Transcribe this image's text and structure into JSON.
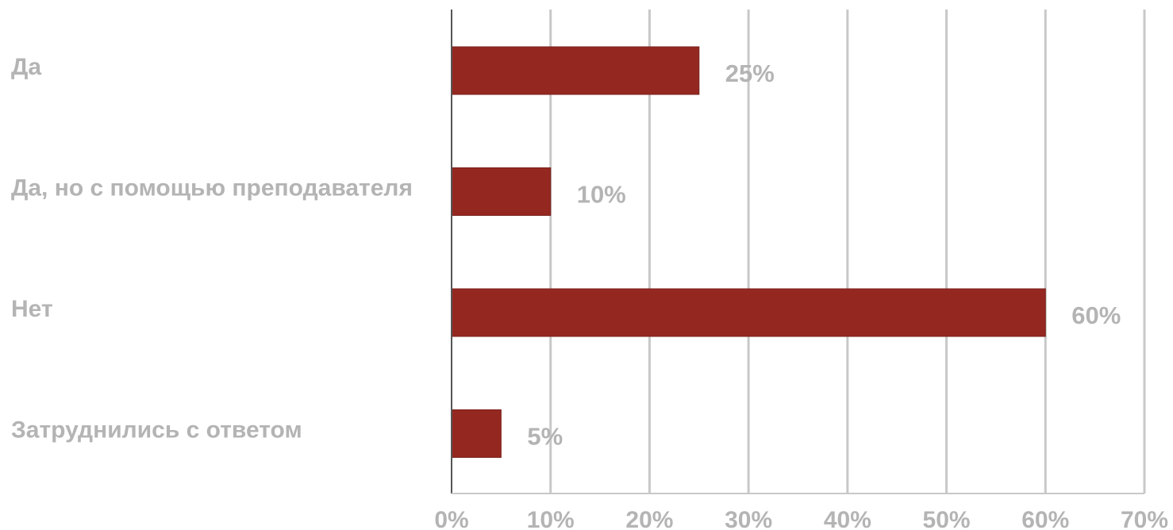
{
  "chart_data": {
    "type": "bar",
    "orientation": "horizontal",
    "categories": [
      "Да",
      "Да, но с помощью преподавателя",
      "Нет",
      "Затруднились с ответом"
    ],
    "values": [
      25,
      10,
      60,
      5
    ],
    "value_labels": [
      "25%",
      "10%",
      "60%",
      "5%"
    ],
    "xlim": [
      0,
      70
    ],
    "x_ticks": [
      0,
      10,
      20,
      30,
      40,
      50,
      60,
      70
    ],
    "x_tick_labels": [
      "0%",
      "10%",
      "20%",
      "30%",
      "40%",
      "50%",
      "60%",
      "70%"
    ],
    "title": "",
    "xlabel": "",
    "ylabel": "",
    "grid": "vertical",
    "legend": "none"
  },
  "colors": {
    "bar": "#942821",
    "bar_outline": "#7a1f1a",
    "grid": "#c8c8c8",
    "axis": "#555555",
    "text": "#b4b4b4"
  }
}
